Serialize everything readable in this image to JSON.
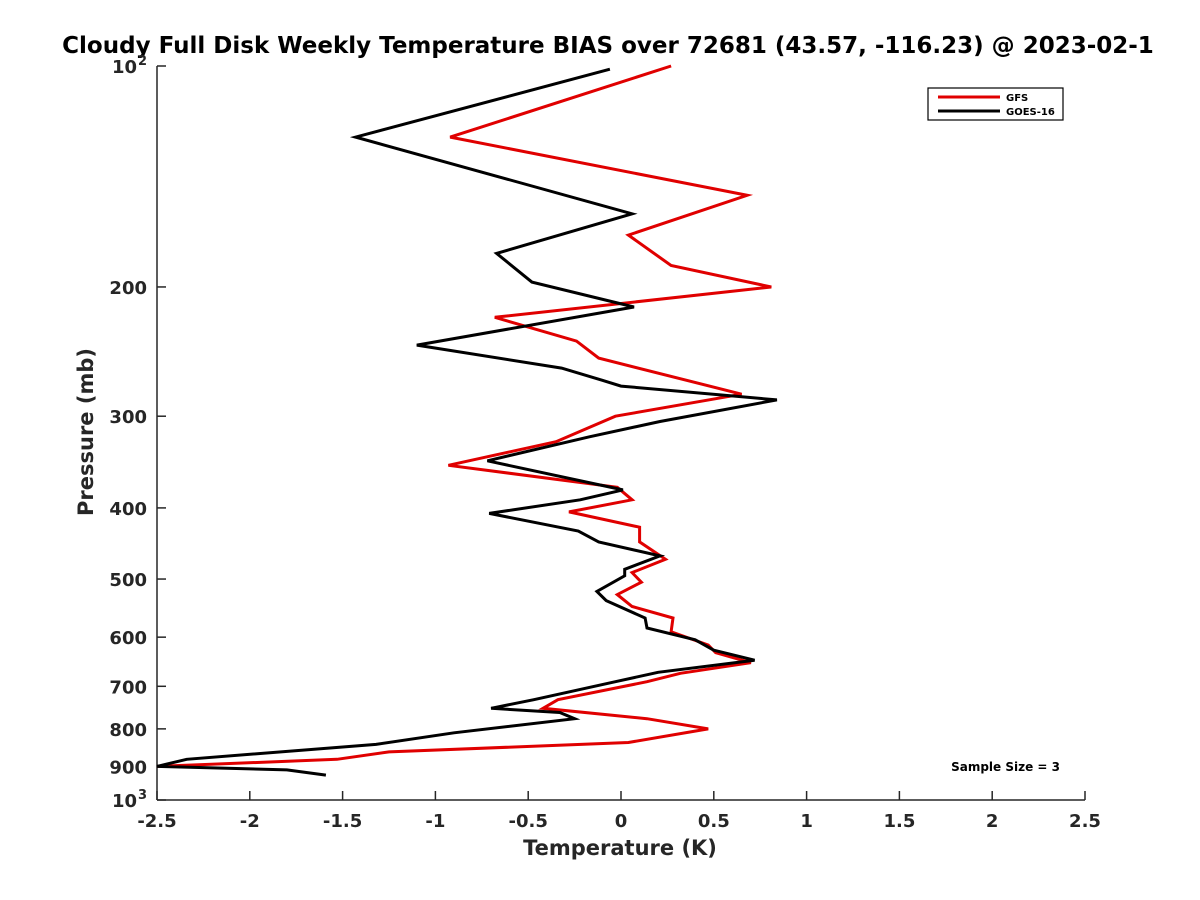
{
  "chart_data": {
    "type": "line",
    "title": "Cloudy Full Disk Weekly Temperature BIAS over 72681 (43.57, -116.23) @ 2023-02-1",
    "xlabel": "Temperature (K)",
    "ylabel": "Pressure (mb)",
    "xlim": [
      -2.5,
      2.5
    ],
    "ylim": [
      100,
      1000
    ],
    "y_scale": "log",
    "y_reversed": true,
    "x_ticks": [
      "-2.5",
      "-2",
      "-1.5",
      "-1",
      "-0.5",
      "0",
      "0.5",
      "1",
      "1.5",
      "2",
      "2.5"
    ],
    "y_ticks": [
      {
        "value": 100,
        "base": "10",
        "exp": "2"
      },
      {
        "value": 200,
        "label": "200"
      },
      {
        "value": 300,
        "label": "300"
      },
      {
        "value": 400,
        "label": "400"
      },
      {
        "value": 500,
        "label": "500"
      },
      {
        "value": 600,
        "label": "600"
      },
      {
        "value": 700,
        "label": "700"
      },
      {
        "value": 800,
        "label": "800"
      },
      {
        "value": 900,
        "label": "900"
      },
      {
        "value": 1000,
        "base": "10",
        "exp": "3"
      }
    ],
    "grid": false,
    "legend_position": "top-right",
    "annotation": "Sample Size = 3",
    "series": [
      {
        "name": "GFS",
        "color": "#e00000",
        "points": [
          [
            0.27,
            100
          ],
          [
            -0.92,
            125
          ],
          [
            0.68,
            150
          ],
          [
            0.04,
            170
          ],
          [
            0.27,
            187
          ],
          [
            0.81,
            200
          ],
          [
            -0.68,
            220
          ],
          [
            -0.24,
            237
          ],
          [
            -0.12,
            250
          ],
          [
            0.65,
            280
          ],
          [
            -0.03,
            300
          ],
          [
            -0.35,
            325
          ],
          [
            -0.93,
            350
          ],
          [
            -0.02,
            375
          ],
          [
            0.06,
            390
          ],
          [
            -0.28,
            405
          ],
          [
            0.1,
            425
          ],
          [
            0.1,
            445
          ],
          [
            0.24,
            470
          ],
          [
            0.06,
            490
          ],
          [
            0.11,
            505
          ],
          [
            -0.02,
            525
          ],
          [
            0.06,
            545
          ],
          [
            0.28,
            565
          ],
          [
            0.27,
            590
          ],
          [
            0.47,
            615
          ],
          [
            0.51,
            630
          ],
          [
            0.7,
            650
          ],
          [
            0.32,
            672
          ],
          [
            0.14,
            690
          ],
          [
            -0.34,
            730
          ],
          [
            -0.42,
            750
          ],
          [
            0.14,
            775
          ],
          [
            0.47,
            800
          ],
          [
            0.04,
            835
          ],
          [
            -1.25,
            860
          ],
          [
            -1.53,
            880
          ],
          [
            -2.5,
            900
          ]
        ]
      },
      {
        "name": "GOES-16",
        "color": "#000000",
        "points": [
          [
            -0.06,
            101
          ],
          [
            -1.43,
            125
          ],
          [
            0.06,
            159
          ],
          [
            -0.67,
            180
          ],
          [
            -0.48,
            197
          ],
          [
            0.07,
            213
          ],
          [
            -1.1,
            240
          ],
          [
            -0.32,
            258
          ],
          [
            -0.1,
            268
          ],
          [
            0.0,
            273
          ],
          [
            0.84,
            285
          ],
          [
            0.21,
            305
          ],
          [
            -0.17,
            320
          ],
          [
            -0.72,
            345
          ],
          [
            0.01,
            378
          ],
          [
            -0.22,
            390
          ],
          [
            -0.71,
            407
          ],
          [
            -0.23,
            430
          ],
          [
            -0.12,
            445
          ],
          [
            0.21,
            465
          ],
          [
            0.02,
            485
          ],
          [
            0.02,
            495
          ],
          [
            -0.13,
            520
          ],
          [
            -0.08,
            535
          ],
          [
            0.13,
            565
          ],
          [
            0.14,
            583
          ],
          [
            0.4,
            605
          ],
          [
            0.5,
            625
          ],
          [
            0.72,
            645
          ],
          [
            0.2,
            670
          ],
          [
            -0.03,
            690
          ],
          [
            -0.47,
            730
          ],
          [
            -0.7,
            750
          ],
          [
            -0.33,
            760
          ],
          [
            -0.25,
            775
          ],
          [
            -0.9,
            810
          ],
          [
            -1.32,
            840
          ],
          [
            -2.34,
            880
          ],
          [
            -2.5,
            900
          ],
          [
            -1.8,
            910
          ],
          [
            -1.59,
            925
          ]
        ]
      }
    ]
  }
}
